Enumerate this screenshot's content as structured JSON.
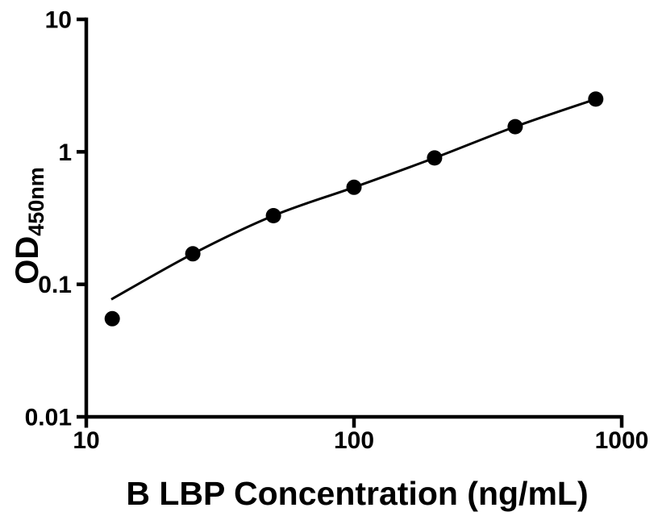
{
  "figure": {
    "background_color": "#ffffff",
    "foreground_color": "#000000"
  },
  "chart_data": {
    "type": "scatter",
    "title": "",
    "xlabel": "B LBP Concentration (ng/mL)",
    "ylabel": "OD450nm",
    "ylabel_main": "OD",
    "ylabel_sub": "450nm",
    "x_scale": "log",
    "y_scale": "log",
    "xlim": [
      10,
      1000
    ],
    "ylim": [
      0.01,
      10
    ],
    "x_ticks": [
      10,
      100,
      1000
    ],
    "x_tick_labels": [
      "10",
      "100",
      "1000"
    ],
    "y_ticks": [
      0.01,
      0.1,
      1,
      10
    ],
    "y_tick_labels": [
      "0.01",
      "0.1",
      "1",
      "10"
    ],
    "grid": false,
    "legend": "none",
    "series": [
      {
        "name": "standard-curve-fit",
        "type": "line",
        "color": "#000000",
        "x": [
          12.4,
          25,
          50,
          100,
          200,
          400,
          800
        ],
        "y": [
          0.077,
          0.17,
          0.33,
          0.54,
          0.9,
          1.55,
          2.5
        ]
      },
      {
        "name": "standard-points",
        "type": "scatter",
        "marker": "filled-circle",
        "color": "#000000",
        "x": [
          12.5,
          25,
          50,
          100,
          200,
          400,
          800
        ],
        "y": [
          0.055,
          0.17,
          0.33,
          0.54,
          0.9,
          1.55,
          2.5
        ]
      }
    ]
  }
}
